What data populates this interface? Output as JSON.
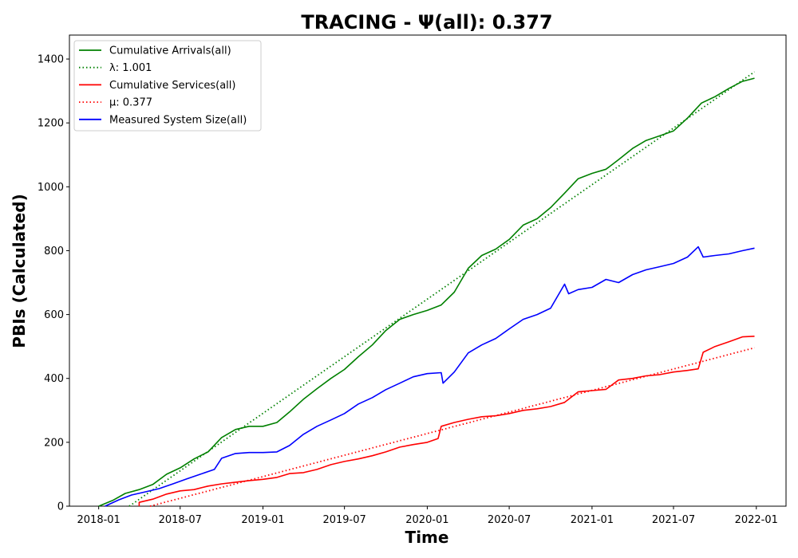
{
  "chart_data": {
    "type": "line",
    "title": "TRACING -  Ψ(all): 0.377",
    "xlabel": "Time",
    "ylabel": "PBIs (Calculated)",
    "xlim": [
      "2017-10-28",
      "2022-03-08"
    ],
    "ylim": [
      0,
      1475
    ],
    "x_ticks": [
      "2018-01",
      "2018-07",
      "2019-01",
      "2019-07",
      "2020-01",
      "2020-07",
      "2021-01",
      "2021-07",
      "2022-01"
    ],
    "y_ticks": [
      0,
      200,
      400,
      600,
      800,
      1000,
      1200,
      1400
    ],
    "grid": false,
    "legend_position": "top-left",
    "series": [
      {
        "name": "Cumulative Arrivals(all)",
        "color": "#008000",
        "style": "solid",
        "points": [
          [
            "2018-01-01",
            0
          ],
          [
            "2018-02-01",
            18
          ],
          [
            "2018-03-01",
            40
          ],
          [
            "2018-04-01",
            52
          ],
          [
            "2018-05-01",
            68
          ],
          [
            "2018-06-01",
            100
          ],
          [
            "2018-07-01",
            120
          ],
          [
            "2018-08-01",
            148
          ],
          [
            "2018-09-01",
            170
          ],
          [
            "2018-10-01",
            215
          ],
          [
            "2018-11-01",
            240
          ],
          [
            "2018-12-01",
            250
          ],
          [
            "2019-01-01",
            250
          ],
          [
            "2019-02-01",
            262
          ],
          [
            "2019-03-01",
            295
          ],
          [
            "2019-04-01",
            335
          ],
          [
            "2019-05-01",
            368
          ],
          [
            "2019-06-01",
            400
          ],
          [
            "2019-07-01",
            428
          ],
          [
            "2019-08-01",
            468
          ],
          [
            "2019-09-01",
            505
          ],
          [
            "2019-10-01",
            550
          ],
          [
            "2019-11-01",
            585
          ],
          [
            "2019-12-01",
            600
          ],
          [
            "2020-01-01",
            613
          ],
          [
            "2020-02-01",
            630
          ],
          [
            "2020-03-01",
            670
          ],
          [
            "2020-04-01",
            745
          ],
          [
            "2020-05-01",
            785
          ],
          [
            "2020-06-01",
            805
          ],
          [
            "2020-07-01",
            835
          ],
          [
            "2020-08-01",
            880
          ],
          [
            "2020-09-01",
            900
          ],
          [
            "2020-10-01",
            935
          ],
          [
            "2020-11-01",
            980
          ],
          [
            "2020-12-01",
            1025
          ],
          [
            "2021-01-01",
            1042
          ],
          [
            "2021-02-01",
            1055
          ],
          [
            "2021-03-01",
            1085
          ],
          [
            "2021-04-01",
            1120
          ],
          [
            "2021-05-01",
            1145
          ],
          [
            "2021-06-01",
            1160
          ],
          [
            "2021-07-01",
            1175
          ],
          [
            "2021-08-01",
            1215
          ],
          [
            "2021-09-01",
            1262
          ],
          [
            "2021-10-01",
            1282
          ],
          [
            "2021-11-01",
            1308
          ],
          [
            "2021-12-01",
            1330
          ],
          [
            "2021-12-28",
            1340
          ]
        ]
      },
      {
        "name": "λ: 1.001",
        "color": "#008000",
        "style": "dotted",
        "points": [
          [
            "2018-03-10",
            0
          ],
          [
            "2021-12-28",
            1360
          ]
        ]
      },
      {
        "name": "Cumulative Services(all)",
        "color": "#ff0000",
        "style": "solid",
        "points": [
          [
            "2018-04-01",
            0
          ],
          [
            "2018-04-01",
            12
          ],
          [
            "2018-05-01",
            22
          ],
          [
            "2018-06-01",
            38
          ],
          [
            "2018-07-01",
            48
          ],
          [
            "2018-08-01",
            52
          ],
          [
            "2018-09-01",
            63
          ],
          [
            "2018-10-01",
            70
          ],
          [
            "2018-11-01",
            75
          ],
          [
            "2018-12-01",
            80
          ],
          [
            "2019-01-01",
            84
          ],
          [
            "2019-02-01",
            90
          ],
          [
            "2019-03-01",
            102
          ],
          [
            "2019-04-01",
            105
          ],
          [
            "2019-05-01",
            115
          ],
          [
            "2019-06-01",
            130
          ],
          [
            "2019-07-01",
            140
          ],
          [
            "2019-08-01",
            148
          ],
          [
            "2019-09-01",
            158
          ],
          [
            "2019-10-01",
            170
          ],
          [
            "2019-11-01",
            185
          ],
          [
            "2019-12-01",
            193
          ],
          [
            "2020-01-01",
            200
          ],
          [
            "2020-01-25",
            212
          ],
          [
            "2020-02-01",
            250
          ],
          [
            "2020-03-01",
            262
          ],
          [
            "2020-04-01",
            272
          ],
          [
            "2020-05-01",
            280
          ],
          [
            "2020-06-01",
            283
          ],
          [
            "2020-07-01",
            290
          ],
          [
            "2020-08-01",
            300
          ],
          [
            "2020-09-01",
            305
          ],
          [
            "2020-10-01",
            312
          ],
          [
            "2020-11-01",
            325
          ],
          [
            "2020-12-01",
            358
          ],
          [
            "2021-01-01",
            362
          ],
          [
            "2021-02-01",
            366
          ],
          [
            "2021-03-01",
            395
          ],
          [
            "2021-04-01",
            400
          ],
          [
            "2021-05-01",
            408
          ],
          [
            "2021-06-01",
            412
          ],
          [
            "2021-07-01",
            420
          ],
          [
            "2021-08-01",
            425
          ],
          [
            "2021-08-25",
            430
          ],
          [
            "2021-09-05",
            482
          ],
          [
            "2021-10-01",
            500
          ],
          [
            "2021-11-01",
            515
          ],
          [
            "2021-12-01",
            530
          ],
          [
            "2021-12-28",
            532
          ]
        ]
      },
      {
        "name": "μ: 0.377",
        "color": "#ff0000",
        "style": "dotted",
        "points": [
          [
            "2018-04-25",
            0
          ],
          [
            "2021-12-28",
            496
          ]
        ]
      },
      {
        "name": "Measured System Size(all)",
        "color": "#0000ff",
        "style": "solid",
        "points": [
          [
            "2018-01-15",
            0
          ],
          [
            "2018-02-15",
            20
          ],
          [
            "2018-03-15",
            35
          ],
          [
            "2018-04-15",
            45
          ],
          [
            "2018-05-15",
            55
          ],
          [
            "2018-06-15",
            70
          ],
          [
            "2018-07-15",
            85
          ],
          [
            "2018-08-15",
            100
          ],
          [
            "2018-09-15",
            115
          ],
          [
            "2018-10-01",
            150
          ],
          [
            "2018-11-01",
            165
          ],
          [
            "2018-12-01",
            168
          ],
          [
            "2019-01-01",
            168
          ],
          [
            "2019-02-01",
            170
          ],
          [
            "2019-03-01",
            190
          ],
          [
            "2019-04-01",
            225
          ],
          [
            "2019-05-01",
            250
          ],
          [
            "2019-06-01",
            270
          ],
          [
            "2019-07-01",
            290
          ],
          [
            "2019-08-01",
            320
          ],
          [
            "2019-09-01",
            340
          ],
          [
            "2019-10-01",
            365
          ],
          [
            "2019-11-01",
            385
          ],
          [
            "2019-12-01",
            405
          ],
          [
            "2020-01-01",
            415
          ],
          [
            "2020-02-01",
            418
          ],
          [
            "2020-02-05",
            385
          ],
          [
            "2020-03-01",
            420
          ],
          [
            "2020-04-01",
            480
          ],
          [
            "2020-05-01",
            505
          ],
          [
            "2020-06-01",
            525
          ],
          [
            "2020-07-01",
            555
          ],
          [
            "2020-08-01",
            585
          ],
          [
            "2020-09-01",
            600
          ],
          [
            "2020-10-01",
            620
          ],
          [
            "2020-11-01",
            695
          ],
          [
            "2020-11-10",
            665
          ],
          [
            "2020-12-01",
            678
          ],
          [
            "2021-01-01",
            685
          ],
          [
            "2021-02-01",
            710
          ],
          [
            "2021-03-01",
            700
          ],
          [
            "2021-04-01",
            725
          ],
          [
            "2021-05-01",
            740
          ],
          [
            "2021-06-01",
            750
          ],
          [
            "2021-07-01",
            760
          ],
          [
            "2021-08-01",
            780
          ],
          [
            "2021-08-25",
            812
          ],
          [
            "2021-09-05",
            780
          ],
          [
            "2021-10-01",
            785
          ],
          [
            "2021-11-01",
            790
          ],
          [
            "2021-12-01",
            800
          ],
          [
            "2021-12-28",
            808
          ]
        ]
      }
    ]
  }
}
